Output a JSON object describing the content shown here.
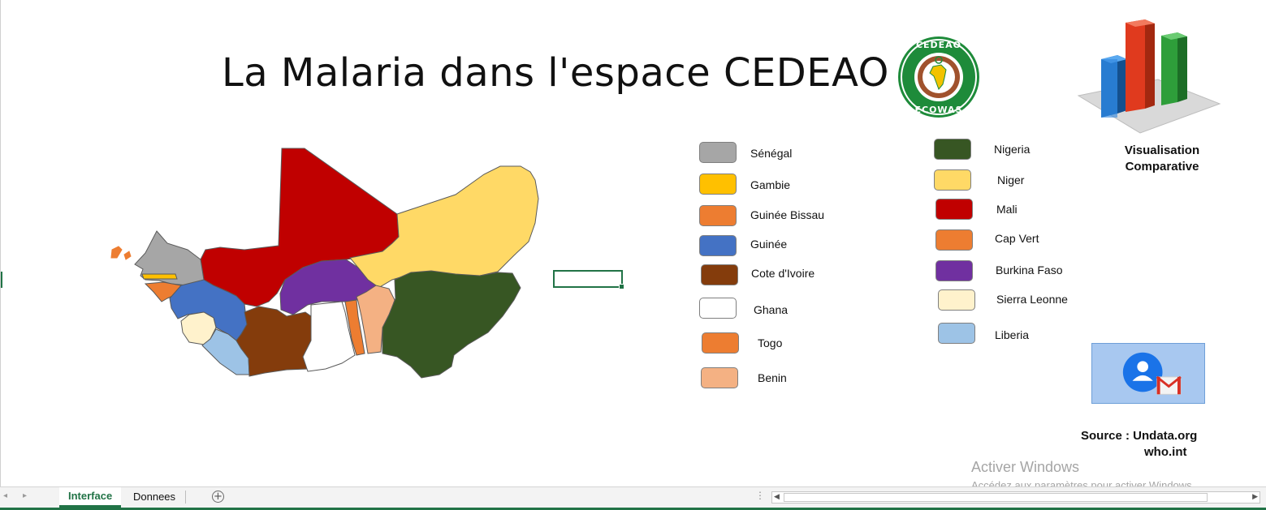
{
  "title": "La Malaria dans l'espace CEDEAO",
  "legend_left": [
    {
      "label": "Sénégal",
      "color": "#A6A6A6"
    },
    {
      "label": "Gambie",
      "color": "#FFC000"
    },
    {
      "label": "Guinée Bissau",
      "color": "#ED7D31"
    },
    {
      "label": "Guinée",
      "color": "#4472C4"
    },
    {
      "label": "Cote d'Ivoire",
      "color": "#843C0C"
    },
    {
      "label": "Ghana",
      "color": "#FFFFFF"
    },
    {
      "label": "Togo",
      "color": "#ED7D31"
    },
    {
      "label": "Benin",
      "color": "#F4B183"
    }
  ],
  "legend_right": [
    {
      "label": "Nigeria",
      "color": "#375623"
    },
    {
      "label": "Niger",
      "color": "#FFD966"
    },
    {
      "label": "Mali",
      "color": "#C00000"
    },
    {
      "label": "Cap Vert",
      "color": "#ED7D31"
    },
    {
      "label": "Burkina Faso",
      "color": "#7030A0"
    },
    {
      "label": "Sierra Leonne",
      "color": "#FFF2CC"
    },
    {
      "label": "Liberia",
      "color": "#9DC3E6"
    }
  ],
  "logo": {
    "top_text": "CEDEAO",
    "bottom_text": "ECOWAS"
  },
  "visualisation": {
    "line1": "Visualisation",
    "line2": "Comparative"
  },
  "source": {
    "line1": "Source : Undata.org",
    "line2": "who.int"
  },
  "watermark": {
    "line1": "Activer Windows",
    "line2": "Accédez aux paramètres pour activer Windows."
  },
  "tabs": [
    {
      "label": "Interface",
      "active": true
    },
    {
      "label": "Donnees",
      "active": false
    }
  ],
  "icons": {
    "chart": "bar-chart-3d-icon",
    "mail": "contact-mail-icon",
    "add": "plus-icon"
  }
}
